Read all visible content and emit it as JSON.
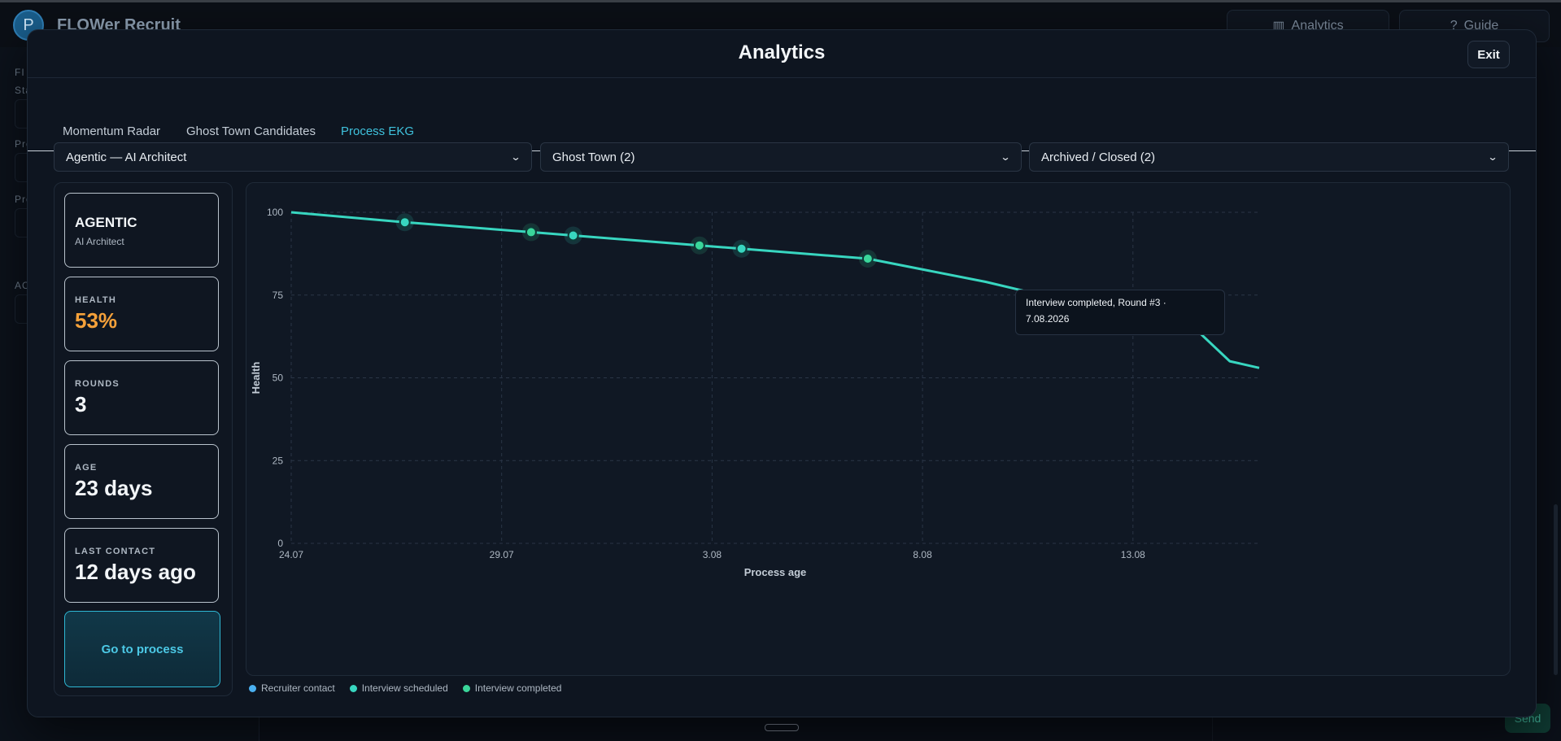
{
  "background": {
    "avatar_initial": "P",
    "app_title": "FLOWer Recruit",
    "analytics_button": "Analytics",
    "guide_button": "Guide",
    "side_labels": [
      "FI",
      "Sta",
      "Pro",
      "Pro",
      "AC"
    ],
    "send_button": "Send"
  },
  "modal": {
    "title": "Analytics",
    "exit_label": "Exit",
    "tabs": [
      {
        "label": "Momentum Radar",
        "active": false
      },
      {
        "label": "Ghost Town Candidates",
        "active": false
      },
      {
        "label": "Process EKG",
        "active": true
      }
    ],
    "filters": {
      "process": "Agentic — AI Architect",
      "group": "Ghost Town (2)",
      "status": "Archived / Closed (2)"
    },
    "summary": {
      "company": "AGENTIC",
      "role": "AI Architect",
      "health_label": "HEALTH",
      "health_value": "53%",
      "rounds_label": "ROUNDS",
      "rounds_value": "3",
      "age_label": "AGE",
      "age_value": "23 days",
      "last_contact_label": "LAST CONTACT",
      "last_contact_value": "12 days ago",
      "goto_label": "Go to process"
    },
    "tooltip": {
      "line1": "Interview completed, Round #3 ·",
      "line2": "7.08.2026"
    },
    "legend": [
      {
        "label": "Recruiter contact",
        "color": "#4ab0f0"
      },
      {
        "label": "Interview scheduled",
        "color": "#38d6c0"
      },
      {
        "label": "Interview completed",
        "color": "#3ad69a"
      }
    ]
  },
  "colors": {
    "accent": "#3fc2dd",
    "line": "#38d6c0",
    "health_warn": "#f5a13a"
  },
  "chart_data": {
    "type": "line",
    "xlabel": "Process age",
    "ylabel": "Health",
    "ylim": [
      0,
      100
    ],
    "yticks": [
      0,
      25,
      50,
      75,
      100
    ],
    "xtick_labels": [
      "24.07",
      "29.07",
      "3.08",
      "8.08",
      "13.08"
    ],
    "xtick_days": [
      0,
      5,
      10,
      15,
      20
    ],
    "xlim_days": [
      0,
      23
    ],
    "grid": true,
    "series": [
      {
        "points": [
          {
            "day": 0,
            "health": 100
          },
          {
            "day": 2.7,
            "health": 97
          },
          {
            "day": 5.7,
            "health": 94
          },
          {
            "day": 6.7,
            "health": 93
          },
          {
            "day": 9.7,
            "health": 90
          },
          {
            "day": 10.7,
            "health": 89
          },
          {
            "day": 13.7,
            "health": 86
          },
          {
            "day": 16.5,
            "health": 79
          },
          {
            "day": 18.5,
            "health": 73
          },
          {
            "day": 20.5,
            "health": 69
          },
          {
            "day": 21.3,
            "health": 67
          },
          {
            "day": 22.3,
            "health": 55
          },
          {
            "day": 23,
            "health": 53
          }
        ]
      }
    ],
    "events": [
      {
        "day": 2.7,
        "health": 97,
        "type": "Interview scheduled"
      },
      {
        "day": 5.7,
        "health": 94,
        "type": "Interview completed"
      },
      {
        "day": 6.7,
        "health": 93,
        "type": "Interview scheduled"
      },
      {
        "day": 9.7,
        "health": 90,
        "type": "Interview completed"
      },
      {
        "day": 10.7,
        "health": 89,
        "type": "Interview scheduled"
      },
      {
        "day": 13.7,
        "health": 86,
        "type": "Interview completed"
      }
    ]
  }
}
